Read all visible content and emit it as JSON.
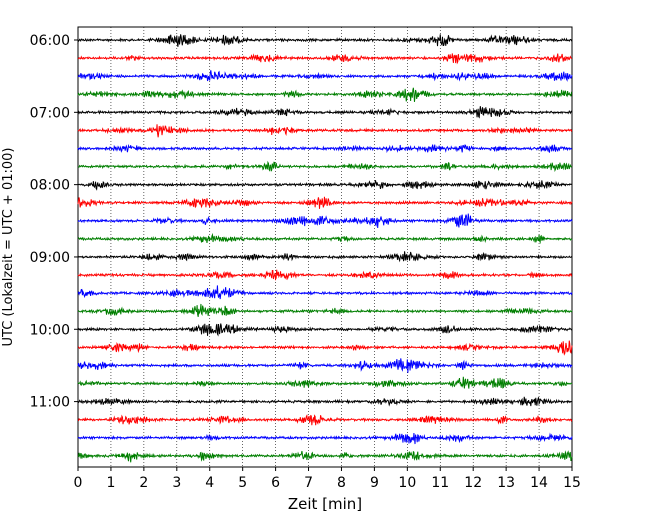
{
  "chart_data": {
    "type": "line",
    "title": "",
    "xlabel": "Zeit  [min]",
    "ylabel": "UTC (Lokalzeit = UTC + 01:00)",
    "xlim": [
      0,
      15
    ],
    "x_ticks": [
      0,
      1,
      2,
      3,
      4,
      5,
      6,
      7,
      8,
      9,
      10,
      11,
      12,
      13,
      14,
      15
    ],
    "y_tick_labels": [
      "06:00",
      "07:00",
      "08:00",
      "09:00",
      "10:00",
      "11:00"
    ],
    "trace_interval_minutes": 15,
    "grid": "vertical dotted lines at each minute",
    "legend": "none",
    "colors_cycle": [
      "#000000",
      "#ff0000",
      "#0000ff",
      "#007f00"
    ],
    "series": [
      {
        "start": "06:00",
        "color": "#000000"
      },
      {
        "start": "06:15",
        "color": "#ff0000"
      },
      {
        "start": "06:30",
        "color": "#0000ff"
      },
      {
        "start": "06:45",
        "color": "#007f00"
      },
      {
        "start": "07:00",
        "color": "#000000"
      },
      {
        "start": "07:15",
        "color": "#ff0000"
      },
      {
        "start": "07:30",
        "color": "#0000ff"
      },
      {
        "start": "07:45",
        "color": "#007f00"
      },
      {
        "start": "08:00",
        "color": "#000000"
      },
      {
        "start": "08:15",
        "color": "#ff0000"
      },
      {
        "start": "08:30",
        "color": "#0000ff"
      },
      {
        "start": "08:45",
        "color": "#007f00"
      },
      {
        "start": "09:00",
        "color": "#000000"
      },
      {
        "start": "09:15",
        "color": "#ff0000"
      },
      {
        "start": "09:30",
        "color": "#0000ff"
      },
      {
        "start": "09:45",
        "color": "#007f00"
      },
      {
        "start": "10:00",
        "color": "#000000"
      },
      {
        "start": "10:15",
        "color": "#ff0000"
      },
      {
        "start": "10:30",
        "color": "#0000ff"
      },
      {
        "start": "10:45",
        "color": "#007f00"
      },
      {
        "start": "11:00",
        "color": "#000000"
      },
      {
        "start": "11:15",
        "color": "#ff0000"
      },
      {
        "start": "11:30",
        "color": "#0000ff"
      },
      {
        "start": "11:45",
        "color": "#007f00"
      }
    ]
  }
}
